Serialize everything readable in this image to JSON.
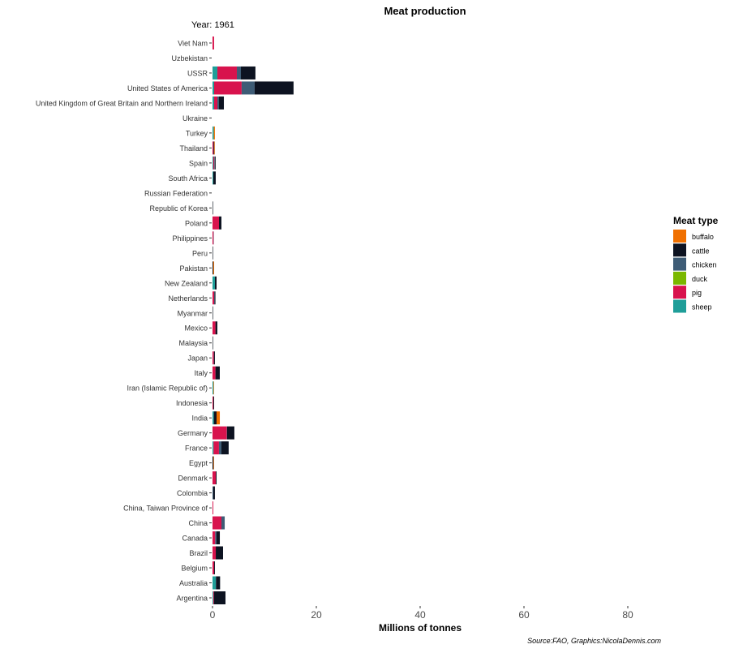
{
  "chart_data": {
    "type": "bar",
    "orientation": "horizontal",
    "stacked": true,
    "title": "Meat production",
    "subtitle": "Year: 1961",
    "xlabel": "Millions of tonnes",
    "ylabel": "",
    "xlim": [
      0,
      85
    ],
    "xticks": [
      0,
      20,
      40,
      60,
      80
    ],
    "grid": false,
    "caption": "Source:FAO, Graphics:NicolaDennis.com",
    "legend": {
      "title": "Meat type",
      "placement": "right"
    },
    "colors": {
      "buffalo": "#f07000",
      "cattle": "#0d1321",
      "chicken": "#3e5c76",
      "duck": "#7ab800",
      "pig": "#d8134d",
      "sheep": "#1f9e99"
    },
    "stack_order": [
      "sheep",
      "pig",
      "duck",
      "chicken",
      "cattle",
      "buffalo"
    ],
    "series_names": [
      "buffalo",
      "cattle",
      "chicken",
      "duck",
      "pig",
      "sheep"
    ],
    "categories": [
      "Argentina",
      "Australia",
      "Belgium",
      "Brazil",
      "Canada",
      "China",
      "China, Taiwan Province of",
      "Colombia",
      "Denmark",
      "Egypt",
      "France",
      "Germany",
      "India",
      "Indonesia",
      "Iran (Islamic Republic of)",
      "Italy",
      "Japan",
      "Malaysia",
      "Mexico",
      "Myanmar",
      "Netherlands",
      "New Zealand",
      "Pakistan",
      "Peru",
      "Philippines",
      "Poland",
      "Republic of Korea",
      "Russian Federation",
      "South Africa",
      "Spain",
      "Thailand",
      "Turkey",
      "Ukraine",
      "United Kingdom of Great Britain and Northern Ireland",
      "United States of America",
      "USSR",
      "Uzbekistan",
      "Viet Nam"
    ],
    "values": {
      "sheep": [
        0.15,
        0.63,
        0,
        0,
        0,
        0,
        0,
        0,
        0,
        0,
        0.2,
        0,
        0.26,
        0,
        0.2,
        0,
        0,
        0,
        0,
        0,
        0,
        0.47,
        0,
        0,
        0,
        0,
        0,
        0,
        0.15,
        0.15,
        0,
        0.26,
        0,
        0.31,
        0.31,
        0.94,
        0,
        0
      ],
      "pig": [
        0.15,
        0,
        0.31,
        0.63,
        0.52,
        1.72,
        0.15,
        0,
        0.63,
        0,
        1.04,
        2.76,
        0,
        0.15,
        0,
        0.57,
        0.26,
        0,
        0.57,
        0,
        0.31,
        0,
        0,
        0,
        0.2,
        1.25,
        0,
        0,
        0,
        0.2,
        0.2,
        0,
        0,
        0.63,
        5.3,
        3.75,
        0,
        0.3
      ],
      "duck": [
        0,
        0,
        0,
        0,
        0,
        0,
        0,
        0,
        0,
        0,
        0,
        0,
        0,
        0,
        0,
        0,
        0,
        0,
        0,
        0,
        0,
        0,
        0,
        0,
        0,
        0,
        0,
        0,
        0,
        0,
        0,
        0,
        0,
        0,
        0,
        0,
        0,
        0
      ],
      "chicken": [
        0,
        0.05,
        0,
        0,
        0.26,
        0.63,
        0,
        0.15,
        0,
        0,
        0.47,
        0.05,
        0,
        0,
        0,
        0,
        0.05,
        0,
        0,
        0,
        0.1,
        0,
        0,
        0,
        0.05,
        0,
        0,
        0,
        0,
        0.1,
        0,
        0,
        0,
        0.31,
        2.5,
        0.78,
        0,
        0
      ],
      "cattle": [
        2.2,
        0.78,
        0.15,
        1.4,
        0.63,
        0,
        0,
        0.31,
        0.15,
        0.2,
        1.4,
        1.4,
        0.52,
        0.15,
        0,
        0.83,
        0.15,
        0.1,
        0.36,
        0.1,
        0.15,
        0.31,
        0.15,
        0.1,
        0,
        0.47,
        0.1,
        0,
        0.47,
        0.15,
        0.15,
        0,
        0,
        0.94,
        7.5,
        2.8,
        0,
        0
      ],
      "buffalo": [
        0,
        0,
        0,
        0,
        0,
        0,
        0,
        0,
        0,
        0.1,
        0,
        0,
        0.63,
        0,
        0.1,
        0,
        0,
        0,
        0,
        0,
        0,
        0,
        0.15,
        0,
        0,
        0,
        0,
        0,
        0,
        0,
        0.1,
        0.2,
        0,
        0,
        0,
        0,
        0,
        0
      ]
    }
  }
}
